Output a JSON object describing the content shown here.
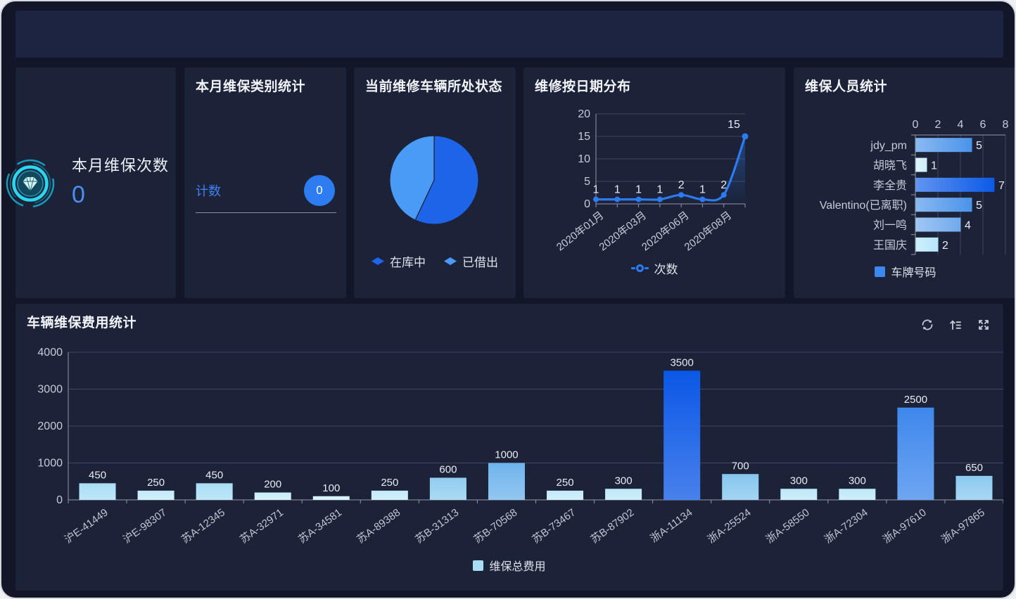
{
  "window": {
    "bg": "#131528",
    "panel_bg": "#1c2339",
    "header_bg": "#1d2441",
    "accent_blue": "#2d7bf0"
  },
  "stat_card": {
    "title": "本月维保次数",
    "value": "0",
    "icon": "gem-badge-icon"
  },
  "category_card": {
    "title": "本月维保类别统计",
    "metric_label": "计数",
    "metric_value": "0"
  },
  "pie_panel": {
    "title": "当前维修车辆所处状态"
  },
  "line_panel": {
    "title": "维修按日期分布"
  },
  "hbar_panel": {
    "title": "维保人员统计"
  },
  "bar_panel": {
    "title": "车辆维保费用统计",
    "toolbar_icons": [
      "refresh-icon",
      "sort-icon",
      "expand-icon"
    ]
  },
  "chart_data": [
    {
      "id": "vehicle-status-pie",
      "type": "pie",
      "title": "当前维修车辆所处状态",
      "slices": [
        {
          "label": "在库中",
          "fraction": 0.57,
          "color": "#1e64e8"
        },
        {
          "label": "已借出",
          "fraction": 0.43,
          "color": "#4a9bf5"
        }
      ],
      "legend_position": "bottom"
    },
    {
      "id": "repairs-by-date-line",
      "type": "line",
      "title": "维修按日期分布",
      "series_name": "次数",
      "values": [
        1,
        1,
        1,
        1,
        2,
        1,
        2,
        15
      ],
      "value_labels": [
        "1",
        "1",
        "1",
        "1",
        "2",
        "1",
        "2",
        "15"
      ],
      "x_tick_labels": [
        "2020年01月",
        "2020年03月",
        "2020年06月",
        "2020年08月"
      ],
      "x_label_point_indexes": [
        0,
        2,
        4,
        6
      ],
      "yticks": [
        0,
        5,
        10,
        15,
        20
      ],
      "ylim": [
        0,
        20
      ],
      "line_color": "#2d7bf0",
      "area": true,
      "grid": true,
      "legend_position": "bottom"
    },
    {
      "id": "staff-hbar",
      "type": "bar",
      "orientation": "horizontal",
      "title": "维保人员统计",
      "categories": [
        "jdy_pm",
        "胡晓飞",
        "李全贵",
        "Valentino(已离职)",
        "刘一鸣",
        "王国庆"
      ],
      "values": [
        5,
        1,
        7,
        5,
        4,
        2
      ],
      "bar_colors": [
        "#4a93ea",
        "#cdeffb",
        "#0b5ae8",
        "#4a93ea",
        "#6fa9ec",
        "#b5e6f9"
      ],
      "xticks": [
        0,
        2,
        4,
        6,
        8
      ],
      "xlim": [
        0,
        8
      ],
      "legend": "车牌号码",
      "legend_color": "#3d87ee",
      "grid": true,
      "legend_position": "bottom"
    },
    {
      "id": "cost-bar",
      "type": "bar",
      "orientation": "vertical",
      "title": "车辆维保费用统计",
      "categories": [
        "沪E-41449",
        "沪E-98307",
        "苏A-12345",
        "苏A-32971",
        "苏A-34581",
        "苏A-89388",
        "苏B-31313",
        "苏B-70568",
        "苏B-73467",
        "苏B-87902",
        "浙A-11134",
        "浙A-25524",
        "浙A-58550",
        "浙A-72304",
        "浙A-97610",
        "浙A-97865"
      ],
      "values": [
        450,
        250,
        450,
        200,
        100,
        250,
        600,
        1000,
        250,
        300,
        3500,
        700,
        300,
        300,
        2500,
        650
      ],
      "bar_colors": [
        "#a9def5",
        "#c3eaf9",
        "#a9def5",
        "#c9edfa",
        "#d2f0fb",
        "#c3eaf9",
        "#90cdef",
        "#6fb3ec",
        "#c3eaf9",
        "#bee8f8",
        "#0b57e6",
        "#85c5ee",
        "#bee8f8",
        "#bee8f8",
        "#3e87ec",
        "#8bc9ef"
      ],
      "yticks": [
        0,
        1000,
        2000,
        3000,
        4000
      ],
      "ylim": [
        0,
        4000
      ],
      "legend": "维保总费用",
      "legend_color": "#a8ddf3",
      "grid": true,
      "legend_position": "bottom"
    }
  ]
}
